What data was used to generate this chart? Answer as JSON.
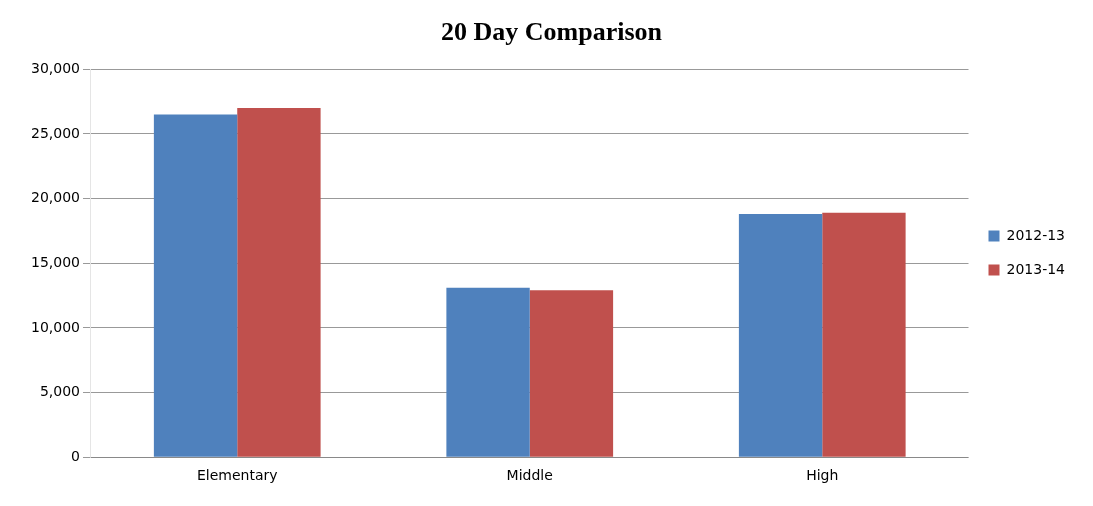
{
  "chart_data": {
    "type": "bar",
    "title": "20 Day Comparison",
    "categories": [
      "Elementary",
      "Middle",
      "High"
    ],
    "series": [
      {
        "name": "2012-13",
        "color": "#4f81bd",
        "values": [
          26500,
          13100,
          18800
        ]
      },
      {
        "name": "2013-14",
        "color": "#c0504d",
        "values": [
          27000,
          12900,
          18900
        ]
      }
    ],
    "ylim": [
      0,
      30000
    ],
    "yticks": [
      {
        "value": 0,
        "label": "0"
      },
      {
        "value": 5000,
        "label": "5,000"
      },
      {
        "value": 10000,
        "label": "10,000"
      },
      {
        "value": 15000,
        "label": "15,000"
      },
      {
        "value": 20000,
        "label": "20,000"
      },
      {
        "value": 25000,
        "label": "25,000"
      },
      {
        "value": 30000,
        "label": "30,000"
      }
    ],
    "grid": "y",
    "legend": "right"
  }
}
